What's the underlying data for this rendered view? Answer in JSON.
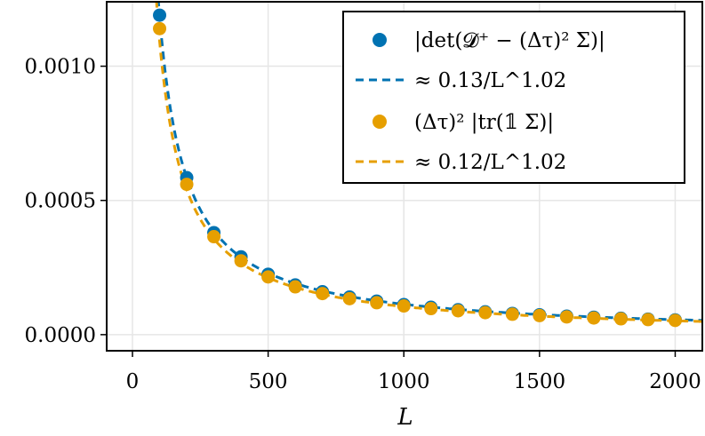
{
  "chart_data": {
    "type": "scatter",
    "xlabel": "L",
    "ylabel": "",
    "xlim": [
      -95,
      2100
    ],
    "ylim": [
      -6e-05,
      0.00124
    ],
    "xticks": [
      0,
      500,
      1000,
      1500,
      2000
    ],
    "xtick_labels": [
      "0",
      "500",
      "1000",
      "1500",
      "2000"
    ],
    "yticks": [
      0.0,
      0.0005,
      0.001
    ],
    "ytick_labels": [
      "0.0000",
      "0.0005",
      "0.0010"
    ],
    "grid": true,
    "legend_position": "top-right",
    "colors": {
      "blue": "#0072b2",
      "orange": "#e69f00"
    },
    "series": [
      {
        "name": "|det(𝓓⁺ − (Δτ)² Σ)|",
        "kind": "scatter",
        "color": "#0072b2",
        "x": [
          100,
          200,
          300,
          400,
          500,
          600,
          700,
          800,
          900,
          1000,
          1100,
          1200,
          1300,
          1400,
          1500,
          1600,
          1700,
          1800,
          1900,
          2000
        ],
        "y": [
          0.00119,
          0.000585,
          0.00038,
          0.00029,
          0.000225,
          0.000185,
          0.00016,
          0.00014,
          0.000125,
          0.000112,
          0.000102,
          9.3e-05,
          8.5e-05,
          7.9e-05,
          7.4e-05,
          6.9e-05,
          6.5e-05,
          6.1e-05,
          5.8e-05,
          5.5e-05
        ]
      },
      {
        "name": "≈ 0.13/L^1.02",
        "kind": "line",
        "style": "dashed",
        "color": "#0072b2",
        "coefficient": 0.13,
        "exponent": 1.02
      },
      {
        "name": "(Δτ)² |tr(𝟙 Σ)|",
        "kind": "scatter",
        "color": "#e69f00",
        "x": [
          100,
          200,
          300,
          400,
          500,
          600,
          700,
          800,
          900,
          1000,
          1100,
          1200,
          1300,
          1400,
          1500,
          1600,
          1700,
          1800,
          1900,
          2000
        ],
        "y": [
          0.00114,
          0.00056,
          0.000365,
          0.000275,
          0.000215,
          0.000178,
          0.000153,
          0.000134,
          0.000119,
          0.000107,
          9.7e-05,
          8.9e-05,
          8.2e-05,
          7.6e-05,
          7.1e-05,
          6.6e-05,
          6.2e-05,
          5.9e-05,
          5.6e-05,
          5.3e-05
        ]
      },
      {
        "name": "≈ 0.12/L^1.02",
        "kind": "line",
        "style": "dashed",
        "color": "#e69f00",
        "coefficient": 0.12,
        "exponent": 1.02
      }
    ]
  }
}
